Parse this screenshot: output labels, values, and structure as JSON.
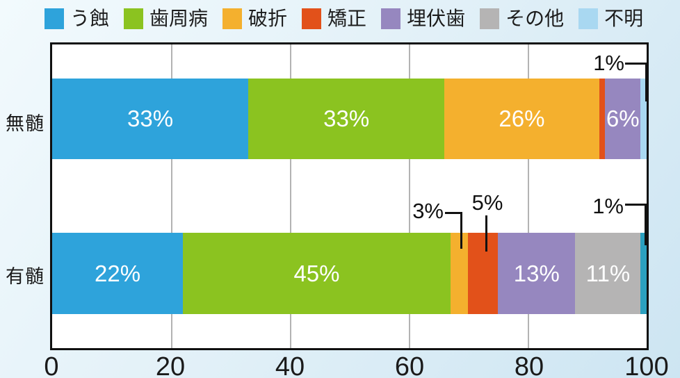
{
  "legend": {
    "items": [
      {
        "label": "う蝕",
        "color": "#2EA3DB"
      },
      {
        "label": "歯周病",
        "color": "#8BC320"
      },
      {
        "label": "破折",
        "color": "#F4B02E"
      },
      {
        "label": "矯正",
        "color": "#E2511A"
      },
      {
        "label": "埋伏歯",
        "color": "#9687BF"
      },
      {
        "label": "その他",
        "color": "#B5B4B4"
      },
      {
        "label": "不明",
        "color": "#A9D8F1"
      }
    ]
  },
  "axis": {
    "tick_labels": [
      "0",
      "20",
      "40",
      "60",
      "80",
      "100"
    ]
  },
  "rows": [
    {
      "label": "無髄",
      "segments": [
        {
          "name": "う蝕",
          "value": 33,
          "color": "#2EA3DB",
          "label": "33%"
        },
        {
          "name": "歯周病",
          "value": 33,
          "color": "#8BC320",
          "label": "33%"
        },
        {
          "name": "破折",
          "value": 26,
          "color": "#F4B02E",
          "label": "26%"
        },
        {
          "name": "矯正",
          "value": 1,
          "color": "#E2511A",
          "label": ""
        },
        {
          "name": "埋伏歯",
          "value": 6,
          "color": "#9687BF",
          "label": "6%"
        },
        {
          "name": "不明",
          "value": 1,
          "color": "#A9D8F1",
          "label": ""
        }
      ]
    },
    {
      "label": "有髄",
      "segments": [
        {
          "name": "う蝕",
          "value": 22,
          "color": "#2EA3DB",
          "label": "22%"
        },
        {
          "name": "歯周病",
          "value": 45,
          "color": "#8BC320",
          "label": "45%"
        },
        {
          "name": "破折",
          "value": 3,
          "color": "#F4B02E",
          "label": ""
        },
        {
          "name": "矯正",
          "value": 5,
          "color": "#E2511A",
          "label": ""
        },
        {
          "name": "埋伏歯",
          "value": 13,
          "color": "#9687BF",
          "label": "13%"
        },
        {
          "name": "その他",
          "value": 11,
          "color": "#B5B4B4",
          "label": "11%"
        },
        {
          "name": "不明",
          "value": 1,
          "color": "#2BA0BF",
          "label": ""
        }
      ]
    }
  ],
  "callouts": [
    {
      "text": "1%",
      "row": 0,
      "target": "不明"
    },
    {
      "text": "3%",
      "row": 1,
      "target": "破折"
    },
    {
      "text": "5%",
      "row": 1,
      "target": "矯正"
    },
    {
      "text": "1%",
      "row": 1,
      "target": "不明"
    }
  ],
  "chart_data": {
    "type": "bar",
    "orientation": "horizontal-stacked",
    "categories": [
      "無髄",
      "有髄"
    ],
    "series": [
      {
        "name": "う蝕",
        "values": [
          33,
          22
        ],
        "color": "#2EA3DB"
      },
      {
        "name": "歯周病",
        "values": [
          33,
          45
        ],
        "color": "#8BC320"
      },
      {
        "name": "破折",
        "values": [
          26,
          3
        ],
        "color": "#F4B02E"
      },
      {
        "name": "矯正",
        "values": [
          1,
          5
        ],
        "color": "#E2511A"
      },
      {
        "name": "埋伏歯",
        "values": [
          6,
          13
        ],
        "color": "#9687BF"
      },
      {
        "name": "その他",
        "values": [
          0,
          11
        ],
        "color": "#B5B4B4"
      },
      {
        "name": "不明",
        "values": [
          1,
          1
        ],
        "color": "#A9D8F1"
      }
    ],
    "unit": "%",
    "xlim": [
      0,
      100
    ],
    "x_ticks": [
      0,
      20,
      40,
      60,
      80,
      100
    ],
    "legend_position": "top",
    "grid": "vertical-gridlines-at-20-40-60-80"
  }
}
